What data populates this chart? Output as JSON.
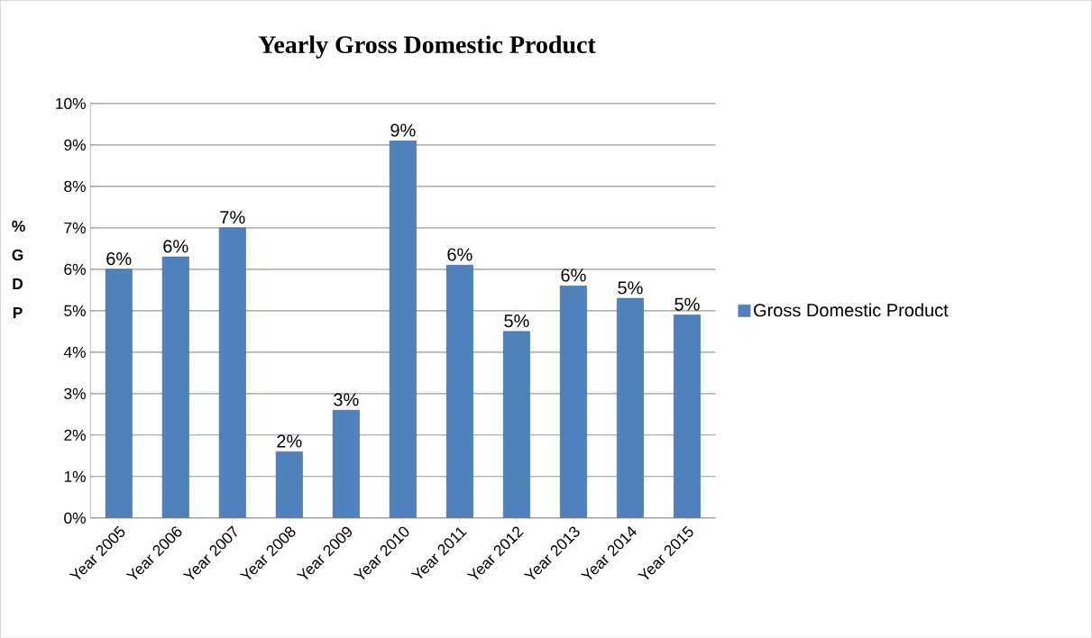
{
  "chart_data": {
    "type": "bar",
    "title": "Yearly Gross Domestic Product",
    "ylabel": "% G D P",
    "categories": [
      "Year 2005",
      "Year 2006",
      "Year 2007",
      "Year 2008",
      "Year 2009",
      "Year 2010",
      "Year 2011",
      "Year 2012",
      "Year 2013",
      "Year 2014",
      "Year 2015"
    ],
    "series": [
      {
        "name": "Gross Domestic Product",
        "color": "#4f81bd",
        "values": [
          6.0,
          6.3,
          7.0,
          1.6,
          2.6,
          9.1,
          6.1,
          4.5,
          5.6,
          5.3,
          4.9
        ],
        "value_labels": [
          "6%",
          "6%",
          "7%",
          "2%",
          "3%",
          "9%",
          "6%",
          "5%",
          "6%",
          "5%",
          "5%"
        ]
      }
    ],
    "ylim": [
      0,
      10
    ],
    "yticks": [
      {
        "value": 0,
        "label": "0%"
      },
      {
        "value": 1,
        "label": "1%"
      },
      {
        "value": 2,
        "label": "2%"
      },
      {
        "value": 3,
        "label": "3%"
      },
      {
        "value": 4,
        "label": "4%"
      },
      {
        "value": 5,
        "label": "5%"
      },
      {
        "value": 6,
        "label": "6%"
      },
      {
        "value": 7,
        "label": "7%"
      },
      {
        "value": 8,
        "label": "8%"
      },
      {
        "value": 9,
        "label": "9%"
      },
      {
        "value": 10,
        "label": "10%"
      }
    ],
    "grid": "y",
    "legend": "right"
  }
}
